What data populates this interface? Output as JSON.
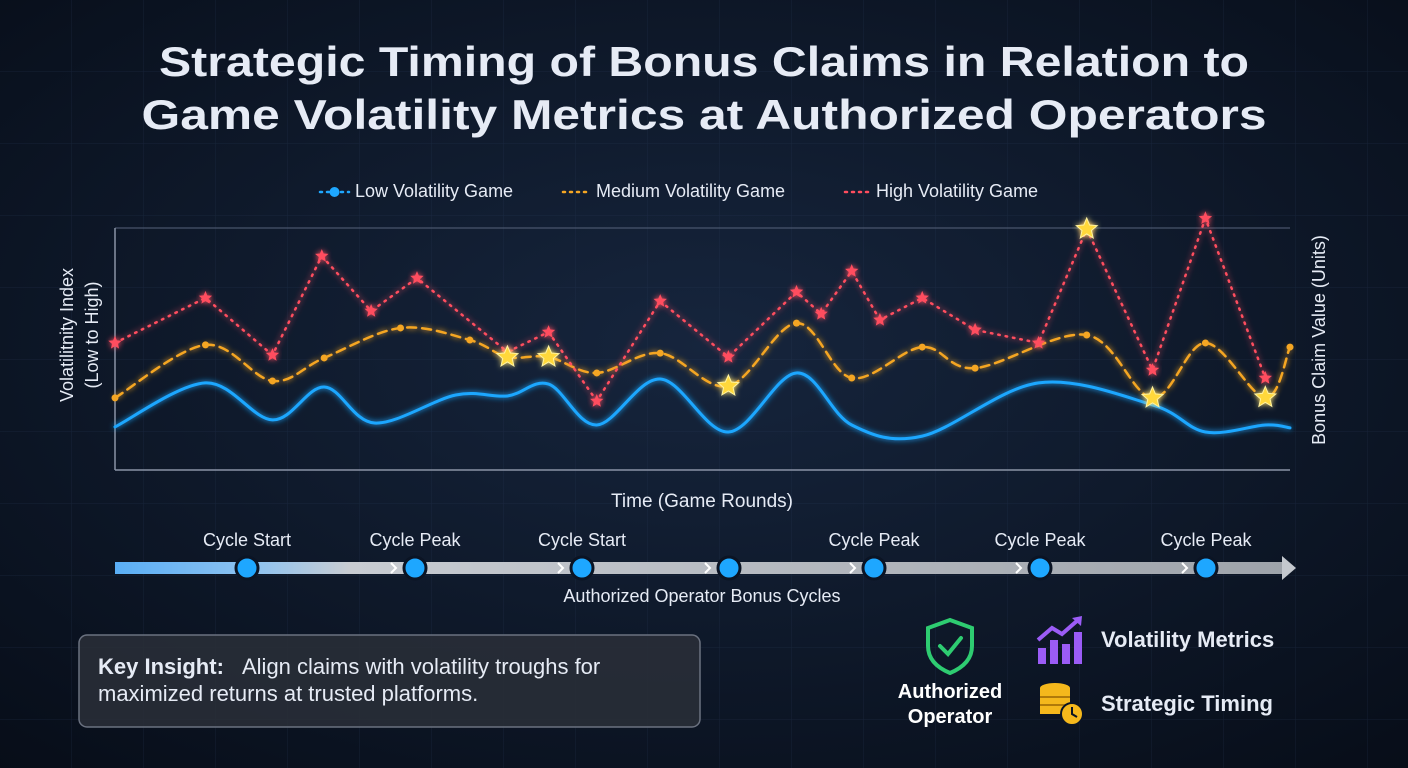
{
  "chart_data": {
    "type": "line",
    "title": [
      "Strategic Timing of Bonus Claims in Relation to",
      "Game Volatility Metrics at Authorized Operators"
    ],
    "y_label": [
      "Volatilitnity Index",
      "(Low to High)"
    ],
    "y2_label": "Bonus Claim Value (Units)",
    "x_label": "Time (Game Rounds)",
    "xlim": [
      0,
      100
    ],
    "ylim": [
      0,
      100
    ],
    "legend": "top",
    "series": [
      {
        "name": "Low Volatility Game",
        "color": "#1ea7ff",
        "line_style": "solid",
        "marker": "none",
        "x": [
          0,
          7.7,
          13.4,
          17.8,
          22.1,
          29.0,
          33.4,
          36.9,
          41.0,
          46.4,
          52.2,
          58.0,
          62.7,
          68.7,
          78.6,
          88.3,
          92.8,
          97.9,
          100
        ],
        "values": [
          17.8,
          36,
          20.7,
          34.3,
          19.4,
          31,
          30.6,
          35.5,
          18.6,
          37.6,
          15.7,
          40.1,
          18.6,
          14,
          36,
          26.9,
          15.7,
          18.6,
          17.4
        ]
      },
      {
        "name": "Medium Volatility Game",
        "color": "#f5a623",
        "line_style": "dashed",
        "marker": "dot",
        "x": [
          0,
          7.7,
          13.4,
          17.8,
          24.3,
          30.2,
          33.4,
          36.9,
          41.0,
          46.4,
          52.2,
          58.0,
          62.7,
          68.7,
          73.2,
          82.7,
          88.3,
          92.8,
          97.9,
          100
        ],
        "values": [
          29.8,
          51.7,
          36.8,
          46.3,
          58.7,
          53.7,
          46.7,
          46.7,
          40.1,
          48.3,
          34.7,
          60.7,
          38,
          50.8,
          42.1,
          55.8,
          29.8,
          52.5,
          29.8,
          50.8
        ]
      },
      {
        "name": "High Volatility Game",
        "color": "#ff4d5e",
        "line_style": "dotted",
        "marker": "star",
        "x": [
          0,
          7.7,
          13.4,
          17.6,
          21.8,
          25.7,
          33.4,
          36.9,
          41.0,
          46.4,
          52.2,
          58.0,
          60.1,
          62.7,
          65.1,
          68.7,
          73.2,
          78.6,
          82.7,
          88.3,
          92.8,
          97.9
        ],
        "values": [
          52.5,
          71.1,
          47.5,
          88.4,
          65.7,
          79.3,
          48.8,
          57,
          28.5,
          69.8,
          46.7,
          73.6,
          64.5,
          82.2,
          62,
          71.1,
          57.9,
          52.5,
          99.6,
          41.3,
          104,
          38
        ]
      }
    ],
    "claim_points": {
      "color": "#ffd83a",
      "x": [
        33.4,
        36.9,
        52.2,
        82.7,
        88.3,
        97.9
      ],
      "values": [
        46.7,
        46.7,
        34.7,
        99.6,
        29.8,
        30
      ]
    },
    "timeline": {
      "title": "Authorized Operator Bonus Cycles",
      "labels": [
        "Cycle Start",
        "Cycle Peak",
        "Cycle Start",
        null,
        "Cycle Peak",
        "Cycle Peak",
        "Cycle Peak"
      ]
    }
  },
  "key_insight": {
    "label": "Key Insight:",
    "lines": [
      "Align claims with volatility troughs for",
      "maximized returns at trusted platforms."
    ]
  },
  "badges": {
    "authorized": "Authorized Operator",
    "metrics": "Volatility Metrics",
    "timing": "Strategic Timing"
  }
}
